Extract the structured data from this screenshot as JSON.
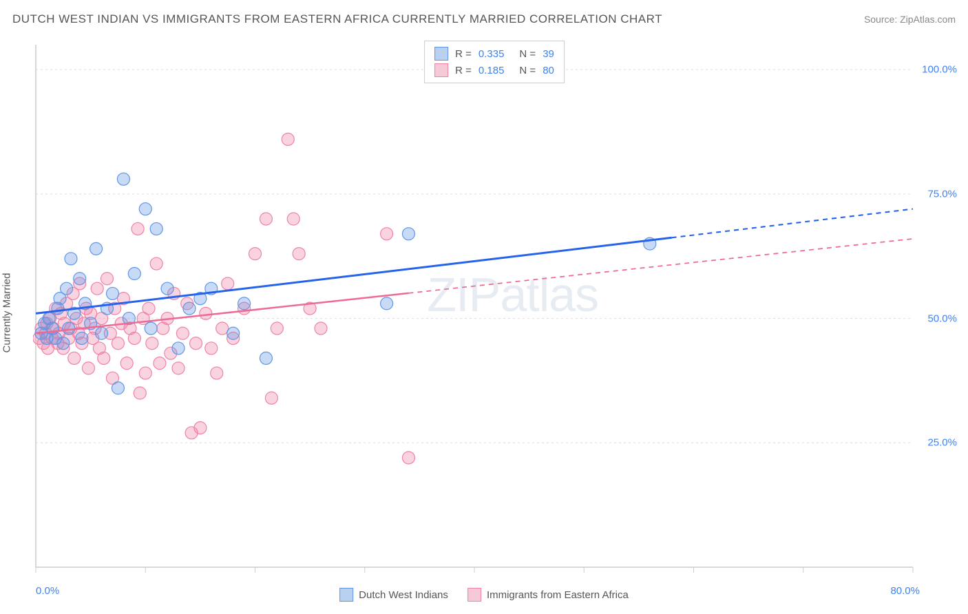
{
  "title": "DUTCH WEST INDIAN VS IMMIGRANTS FROM EASTERN AFRICA CURRENTLY MARRIED CORRELATION CHART",
  "source": "Source: ZipAtlas.com",
  "y_axis_label": "Currently Married",
  "watermark": "ZIPatlas",
  "chart": {
    "type": "scatter",
    "xlim": [
      0,
      80
    ],
    "ylim": [
      0,
      105
    ],
    "x_ticks": [
      0,
      10,
      20,
      30,
      40,
      50,
      60,
      70,
      80
    ],
    "x_tick_labels": {
      "0": "0.0%",
      "80": "80.0%"
    },
    "y_ticks": [
      25,
      50,
      75,
      100
    ],
    "y_tick_labels": {
      "25": "25.0%",
      "50": "50.0%",
      "75": "75.0%",
      "100": "100.0%"
    },
    "background_color": "#ffffff",
    "grid_color": "#dddddd",
    "axis_color": "#cccccc",
    "series": [
      {
        "name": "Dutch West Indians",
        "legend_label": "Dutch West Indians",
        "color_fill": "rgba(96, 150, 230, 0.35)",
        "color_stroke": "#6096e6",
        "swatch_fill": "#b9d1f0",
        "swatch_border": "#6096e6",
        "trend_color": "#2563eb",
        "trend_width": 3,
        "r_value": "0.335",
        "n_value": "39",
        "marker_radius": 9,
        "trend": {
          "x1": 0,
          "y1": 51,
          "x2": 80,
          "y2": 72,
          "solid_until_x": 58
        },
        "points": [
          [
            0.5,
            47
          ],
          [
            0.8,
            49
          ],
          [
            1.0,
            46
          ],
          [
            1.2,
            50
          ],
          [
            1.5,
            48
          ],
          [
            1.8,
            46
          ],
          [
            2.0,
            52
          ],
          [
            2.2,
            54
          ],
          [
            2.5,
            45
          ],
          [
            2.8,
            56
          ],
          [
            3.0,
            48
          ],
          [
            3.2,
            62
          ],
          [
            3.5,
            51
          ],
          [
            4.0,
            58
          ],
          [
            4.2,
            46
          ],
          [
            4.5,
            53
          ],
          [
            5.0,
            49
          ],
          [
            5.5,
            64
          ],
          [
            6.0,
            47
          ],
          [
            6.5,
            52
          ],
          [
            7.0,
            55
          ],
          [
            7.5,
            36
          ],
          [
            8.0,
            78
          ],
          [
            8.5,
            50
          ],
          [
            9.0,
            59
          ],
          [
            10.0,
            72
          ],
          [
            10.5,
            48
          ],
          [
            11.0,
            68
          ],
          [
            12.0,
            56
          ],
          [
            13.0,
            44
          ],
          [
            14.0,
            52
          ],
          [
            15.0,
            54
          ],
          [
            16.0,
            56
          ],
          [
            18.0,
            47
          ],
          [
            19.0,
            53
          ],
          [
            21.0,
            42
          ],
          [
            32.0,
            53
          ],
          [
            34.0,
            67
          ],
          [
            56.0,
            65
          ]
        ]
      },
      {
        "name": "Immigrants from Eastern Africa",
        "legend_label": "Immigrants from Eastern Africa",
        "color_fill": "rgba(240, 130, 165, 0.35)",
        "color_stroke": "#f082a5",
        "swatch_fill": "#f6c9d7",
        "swatch_border": "#f082a5",
        "trend_color": "#ec6a94",
        "trend_width": 2.5,
        "r_value": "0.185",
        "n_value": "80",
        "marker_radius": 9,
        "trend": {
          "x1": 0,
          "y1": 47,
          "x2": 80,
          "y2": 66,
          "solid_until_x": 34
        },
        "points": [
          [
            0.3,
            46
          ],
          [
            0.5,
            48
          ],
          [
            0.7,
            45
          ],
          [
            0.9,
            47
          ],
          [
            1.0,
            49
          ],
          [
            1.1,
            44
          ],
          [
            1.3,
            50
          ],
          [
            1.5,
            46
          ],
          [
            1.6,
            48
          ],
          [
            1.8,
            52
          ],
          [
            2.0,
            45
          ],
          [
            2.1,
            47
          ],
          [
            2.3,
            51
          ],
          [
            2.5,
            44
          ],
          [
            2.6,
            49
          ],
          [
            2.8,
            53
          ],
          [
            3.0,
            46
          ],
          [
            3.2,
            48
          ],
          [
            3.4,
            55
          ],
          [
            3.5,
            42
          ],
          [
            3.7,
            50
          ],
          [
            3.9,
            47
          ],
          [
            4.0,
            57
          ],
          [
            4.2,
            45
          ],
          [
            4.4,
            49
          ],
          [
            4.6,
            52
          ],
          [
            4.8,
            40
          ],
          [
            5.0,
            51
          ],
          [
            5.2,
            46
          ],
          [
            5.4,
            48
          ],
          [
            5.6,
            56
          ],
          [
            5.8,
            44
          ],
          [
            6.0,
            50
          ],
          [
            6.2,
            42
          ],
          [
            6.5,
            58
          ],
          [
            6.8,
            47
          ],
          [
            7.0,
            38
          ],
          [
            7.2,
            52
          ],
          [
            7.5,
            45
          ],
          [
            7.8,
            49
          ],
          [
            8.0,
            54
          ],
          [
            8.3,
            41
          ],
          [
            8.6,
            48
          ],
          [
            9.0,
            46
          ],
          [
            9.3,
            68
          ],
          [
            9.5,
            35
          ],
          [
            9.8,
            50
          ],
          [
            10.0,
            39
          ],
          [
            10.3,
            52
          ],
          [
            10.6,
            45
          ],
          [
            11.0,
            61
          ],
          [
            11.3,
            41
          ],
          [
            11.6,
            48
          ],
          [
            12.0,
            50
          ],
          [
            12.3,
            43
          ],
          [
            12.6,
            55
          ],
          [
            13.0,
            40
          ],
          [
            13.4,
            47
          ],
          [
            13.8,
            53
          ],
          [
            14.2,
            27
          ],
          [
            14.6,
            45
          ],
          [
            15.0,
            28
          ],
          [
            15.5,
            51
          ],
          [
            16.0,
            44
          ],
          [
            16.5,
            39
          ],
          [
            17.0,
            48
          ],
          [
            17.5,
            57
          ],
          [
            18.0,
            46
          ],
          [
            19.0,
            52
          ],
          [
            20.0,
            63
          ],
          [
            21.0,
            70
          ],
          [
            21.5,
            34
          ],
          [
            22.0,
            48
          ],
          [
            23.0,
            86
          ],
          [
            23.5,
            70
          ],
          [
            24.0,
            63
          ],
          [
            25.0,
            52
          ],
          [
            26.0,
            48
          ],
          [
            32.0,
            67
          ],
          [
            34.0,
            22
          ]
        ]
      }
    ]
  },
  "legend_top": {
    "r_label": "R =",
    "n_label": "N ="
  }
}
